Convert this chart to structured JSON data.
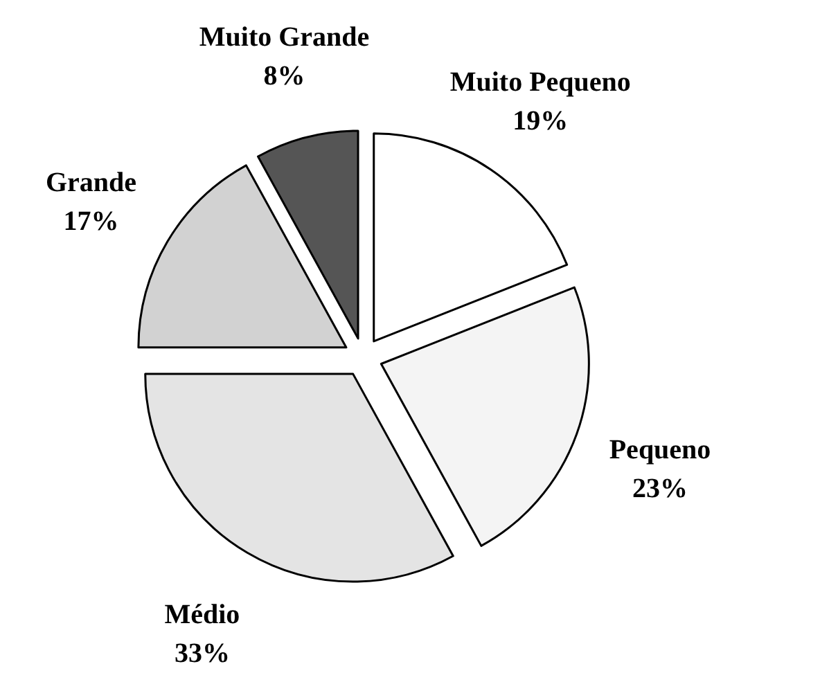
{
  "chart_data": {
    "type": "pie",
    "categories": [
      "Muito Pequeno",
      "Pequeno",
      "Médio",
      "Grande",
      "Muito Grande"
    ],
    "values": [
      19,
      23,
      33,
      17,
      8
    ],
    "colors": [
      "#ffffff",
      "#f4f4f4",
      "#e4e4e4",
      "#d2d2d2",
      "#555555"
    ],
    "value_labels": [
      "19%",
      "23%",
      "33%",
      "17%",
      "8%"
    ],
    "data_labels": true
  }
}
